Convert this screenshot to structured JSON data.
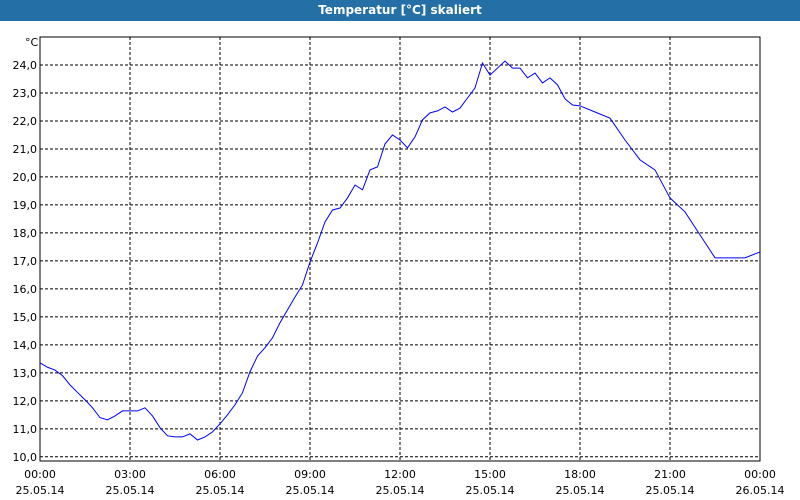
{
  "chart_data": {
    "type": "line",
    "title": "Temperatur [°C] skaliert",
    "y_unit": "°C",
    "x": [
      0,
      0.25,
      0.5,
      0.75,
      1,
      1.25,
      1.5,
      1.75,
      2,
      2.25,
      2.5,
      2.75,
      3,
      3.25,
      3.5,
      3.75,
      4,
      4.25,
      4.5,
      4.75,
      5,
      5.25,
      5.5,
      5.75,
      6,
      6.25,
      6.5,
      6.75,
      7,
      7.25,
      7.5,
      7.75,
      8,
      8.25,
      8.5,
      8.75,
      9,
      9.25,
      9.5,
      9.75,
      10,
      10.25,
      10.5,
      10.75,
      11,
      11.25,
      11.5,
      11.75,
      12,
      12.25,
      12.5,
      12.75,
      13,
      13.25,
      13.5,
      13.75,
      14,
      14.25,
      14.5,
      14.75,
      15,
      15.25,
      15.5,
      15.75,
      16,
      16.25,
      16.5,
      16.75,
      17,
      17.25,
      17.5,
      17.75,
      18,
      18.5,
      19,
      19.5,
      20,
      20.5,
      21,
      21.5,
      22,
      22.5,
      23,
      23.5,
      24
    ],
    "series": [
      {
        "name": "Temperatur",
        "color": "#0000ff",
        "values": [
          13.36,
          13.2,
          13.1,
          12.9,
          12.57,
          12.3,
          12.04,
          11.75,
          11.4,
          11.32,
          11.46,
          11.64,
          11.64,
          11.64,
          11.75,
          11.46,
          11.04,
          10.75,
          10.71,
          10.71,
          10.82,
          10.6,
          10.71,
          10.89,
          11.18,
          11.5,
          11.86,
          12.29,
          13.04,
          13.6,
          13.9,
          14.25,
          14.79,
          15.25,
          15.71,
          16.14,
          16.96,
          17.64,
          18.39,
          18.82,
          18.89,
          19.25,
          19.71,
          19.54,
          20.25,
          20.36,
          21.18,
          21.5,
          21.32,
          21.04,
          21.43,
          22.04,
          22.29,
          22.36,
          22.5,
          22.32,
          22.46,
          22.82,
          23.18,
          24.07,
          23.64,
          23.89,
          24.14,
          23.89,
          23.89,
          23.54,
          23.71,
          23.36,
          23.54,
          23.29,
          22.79,
          22.57,
          22.54,
          22.32,
          22.1,
          21.32,
          20.61,
          20.25,
          19.25,
          18.75,
          17.93,
          17.11,
          17.11,
          17.11,
          17.32
        ]
      }
    ],
    "xlim": [
      0,
      24
    ],
    "xticks": [
      {
        "value": 0,
        "label": "00:00",
        "date": "25.05.14"
      },
      {
        "value": 3,
        "label": "03:00",
        "date": "25.05.14"
      },
      {
        "value": 6,
        "label": "06:00",
        "date": "25.05.14"
      },
      {
        "value": 9,
        "label": "09:00",
        "date": "25.05.14"
      },
      {
        "value": 12,
        "label": "12:00",
        "date": "25.05.14"
      },
      {
        "value": 15,
        "label": "15:00",
        "date": "25.05.14"
      },
      {
        "value": 18,
        "label": "18:00",
        "date": "25.05.14"
      },
      {
        "value": 21,
        "label": "21:00",
        "date": "25.05.14"
      },
      {
        "value": 24,
        "label": "00:00",
        "date": "26.05.14"
      }
    ],
    "ylim": [
      9.85,
      25.0
    ],
    "yticks": [
      {
        "value": 10,
        "label": "10,0"
      },
      {
        "value": 11,
        "label": "11,0"
      },
      {
        "value": 12,
        "label": "12,0"
      },
      {
        "value": 13,
        "label": "13,0"
      },
      {
        "value": 14,
        "label": "14,0"
      },
      {
        "value": 15,
        "label": "15,0"
      },
      {
        "value": 16,
        "label": "16,0"
      },
      {
        "value": 17,
        "label": "17,0"
      },
      {
        "value": 18,
        "label": "18,0"
      },
      {
        "value": 19,
        "label": "19,0"
      },
      {
        "value": 20,
        "label": "20,0"
      },
      {
        "value": 21,
        "label": "21,0"
      },
      {
        "value": 22,
        "label": "22,0"
      },
      {
        "value": 23,
        "label": "23,0"
      },
      {
        "value": 24,
        "label": "24,0"
      }
    ],
    "grid": true
  }
}
